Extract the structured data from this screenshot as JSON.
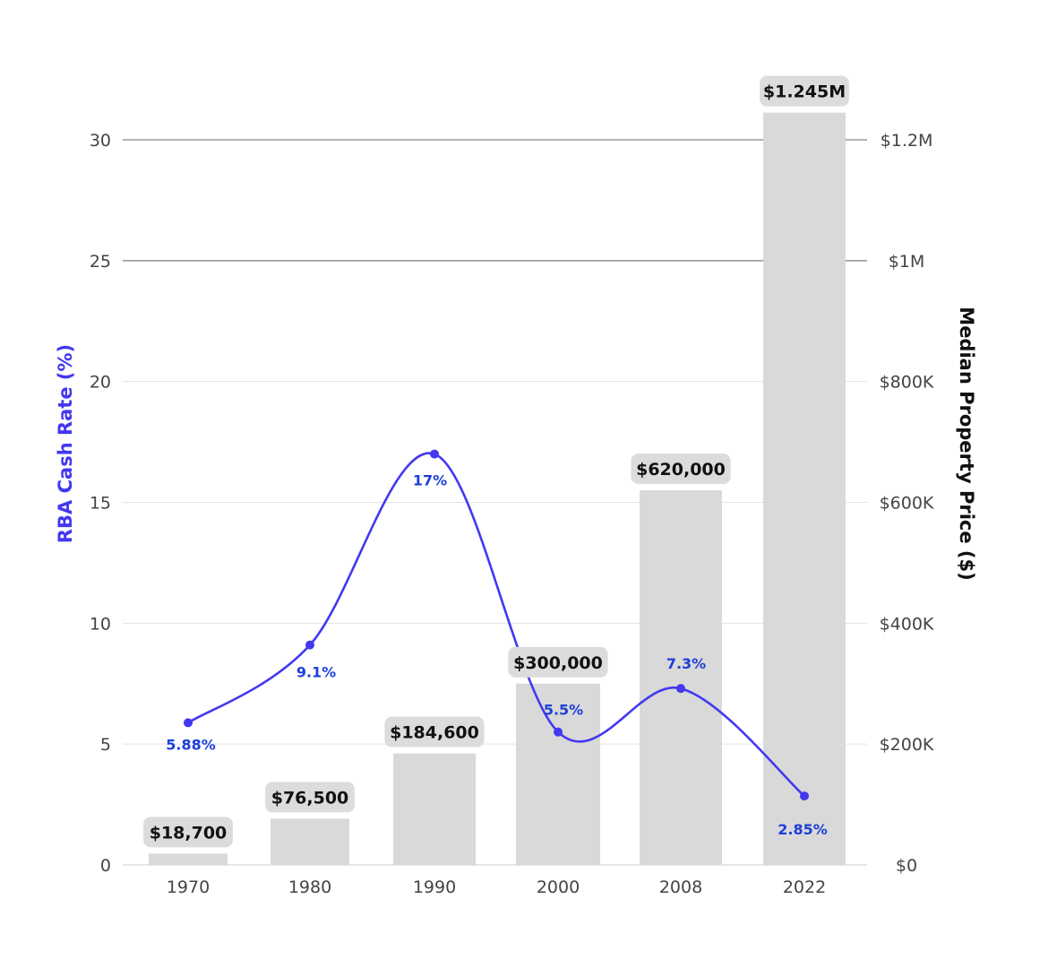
{
  "chart_data": {
    "type": "bar",
    "categories": [
      "1970",
      "1980",
      "1990",
      "2000",
      "2008",
      "2022"
    ],
    "series": [
      {
        "name": "Median Property Price",
        "kind": "bar",
        "axis": "right",
        "values": [
          18700,
          76500,
          184600,
          300000,
          620000,
          1245000
        ],
        "labels": [
          "$18,700",
          "$76,500",
          "$184,600",
          "$300,000",
          "$620,000",
          "$1.245M"
        ]
      },
      {
        "name": "RBA Cash Rate",
        "kind": "line",
        "smooth": true,
        "axis": "left",
        "values": [
          5.88,
          9.1,
          17,
          5.5,
          7.3,
          2.85
        ],
        "labels": [
          "5.88%",
          "9.1%",
          "17%",
          "5.5%",
          "7.3%",
          "2.85%"
        ]
      }
    ],
    "y_left": {
      "label": "RBA Cash Rate (%)",
      "range": [
        0,
        30
      ],
      "ticks": [
        0,
        5,
        10,
        15,
        20,
        25,
        30
      ],
      "tick_labels": [
        "0",
        "5",
        "10",
        "15",
        "20",
        "25",
        "30"
      ]
    },
    "y_right": {
      "label": "Median Property Price ($)",
      "range": [
        0,
        1200000
      ],
      "ticks": [
        0,
        200000,
        400000,
        600000,
        800000,
        1000000,
        1200000
      ],
      "tick_labels": [
        "$0",
        "$200K",
        "$400K",
        "$600K",
        "$800K",
        "$1M",
        "$1.2M"
      ]
    },
    "grid": true,
    "colors": {
      "line": "#4338f0",
      "line_label": "#1d3fd9",
      "bar": "#d9d9d9",
      "bar_label_bg": "#dcdcdc",
      "grid": "#e3e3e3",
      "grid_major": "#9a9a9a"
    }
  }
}
